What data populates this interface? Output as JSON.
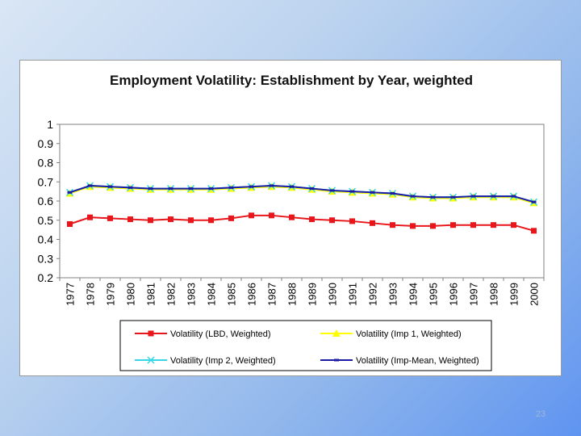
{
  "slide": {
    "number": "23"
  },
  "chart_data": {
    "type": "line",
    "title": "Employment Volatility: Establishment by Year, weighted",
    "xlabel": "",
    "ylabel": "",
    "x": [
      "1977",
      "1978",
      "1979",
      "1980",
      "1981",
      "1982",
      "1983",
      "1984",
      "1985",
      "1986",
      "1987",
      "1988",
      "1989",
      "1990",
      "1991",
      "1992",
      "1993",
      "1994",
      "1995",
      "1996",
      "1997",
      "1998",
      "1999",
      "2000"
    ],
    "ylim": [
      0.2,
      1
    ],
    "yticks": [
      "0.2",
      "0.3",
      "0.4",
      "0.5",
      "0.6",
      "0.7",
      "0.8",
      "0.9",
      "1"
    ],
    "grid": false,
    "legend_position": "bottom",
    "series": [
      {
        "name": "Volatility (LBD, Weighted)",
        "color": "#e8151b",
        "marker": "square",
        "values": [
          0.48,
          0.515,
          0.51,
          0.505,
          0.5,
          0.505,
          0.5,
          0.5,
          0.51,
          0.525,
          0.525,
          0.515,
          0.505,
          0.5,
          0.495,
          0.485,
          0.475,
          0.47,
          0.47,
          0.475,
          0.475,
          0.475,
          0.475,
          0.445
        ]
      },
      {
        "name": "Volatility (Imp 1, Weighted)",
        "color": "#ffff00",
        "marker": "triangle",
        "values": [
          0.64,
          0.675,
          0.67,
          0.665,
          0.66,
          0.66,
          0.66,
          0.66,
          0.665,
          0.67,
          0.675,
          0.67,
          0.66,
          0.65,
          0.645,
          0.64,
          0.635,
          0.62,
          0.615,
          0.615,
          0.62,
          0.62,
          0.62,
          0.59
        ]
      },
      {
        "name": "Volatility (Imp 2, Weighted)",
        "color": "#33d7e6",
        "marker": "x",
        "values": [
          0.645,
          0.68,
          0.675,
          0.67,
          0.665,
          0.665,
          0.665,
          0.665,
          0.67,
          0.675,
          0.68,
          0.675,
          0.665,
          0.655,
          0.65,
          0.645,
          0.64,
          0.625,
          0.62,
          0.62,
          0.625,
          0.625,
          0.625,
          0.595
        ]
      },
      {
        "name": "Volatility (Imp-Mean, Weighted)",
        "color": "#1a1aa6",
        "marker": "dash",
        "values": [
          0.645,
          0.68,
          0.675,
          0.67,
          0.665,
          0.665,
          0.665,
          0.665,
          0.67,
          0.675,
          0.68,
          0.675,
          0.665,
          0.655,
          0.65,
          0.645,
          0.64,
          0.625,
          0.62,
          0.62,
          0.625,
          0.625,
          0.625,
          0.595
        ]
      }
    ]
  }
}
